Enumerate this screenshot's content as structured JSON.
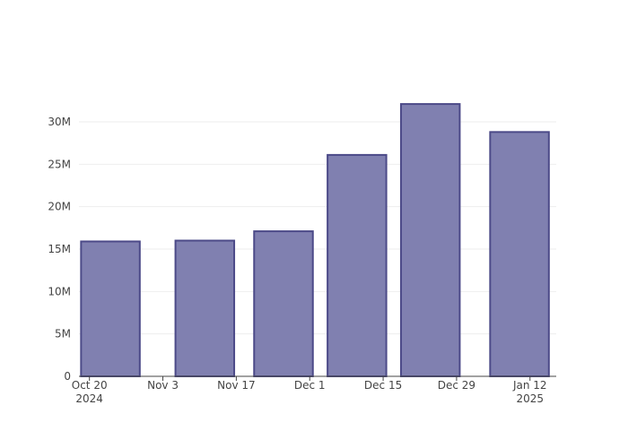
{
  "chart_data": {
    "type": "bar",
    "x": [
      "2024-10-24",
      "2024-11-11",
      "2024-11-26",
      "2024-12-10",
      "2024-12-24",
      "2025-01-10"
    ],
    "values": [
      15900000,
      16000000,
      17100000,
      26100000,
      32100000,
      28800000
    ],
    "color": "#8080b0",
    "edge_color": "#4c4a88",
    "xlim": [
      "2024-10-18",
      "2025-01-17"
    ],
    "xticks": [
      {
        "value": "2024-10-20",
        "label": "Oct 20\n2024"
      },
      {
        "value": "2024-11-03",
        "label": "Nov 3"
      },
      {
        "value": "2024-11-17",
        "label": "Nov 17"
      },
      {
        "value": "2024-12-01",
        "label": "Dec 1"
      },
      {
        "value": "2024-12-15",
        "label": "Dec 15"
      },
      {
        "value": "2024-12-29",
        "label": "Dec 29"
      },
      {
        "value": "2025-01-12",
        "label": "Jan 12\n2025"
      }
    ],
    "ylim": [
      0,
      33800000
    ],
    "yticks": [
      0,
      {
        "value": 5000000,
        "label": "5M"
      },
      {
        "value": 10000000,
        "label": "10M"
      },
      {
        "value": 15000000,
        "label": "15M"
      },
      {
        "value": 20000000,
        "label": "20M"
      },
      {
        "value": 25000000,
        "label": "25M"
      },
      {
        "value": 30000000,
        "label": "30M"
      }
    ],
    "grid": true
  }
}
